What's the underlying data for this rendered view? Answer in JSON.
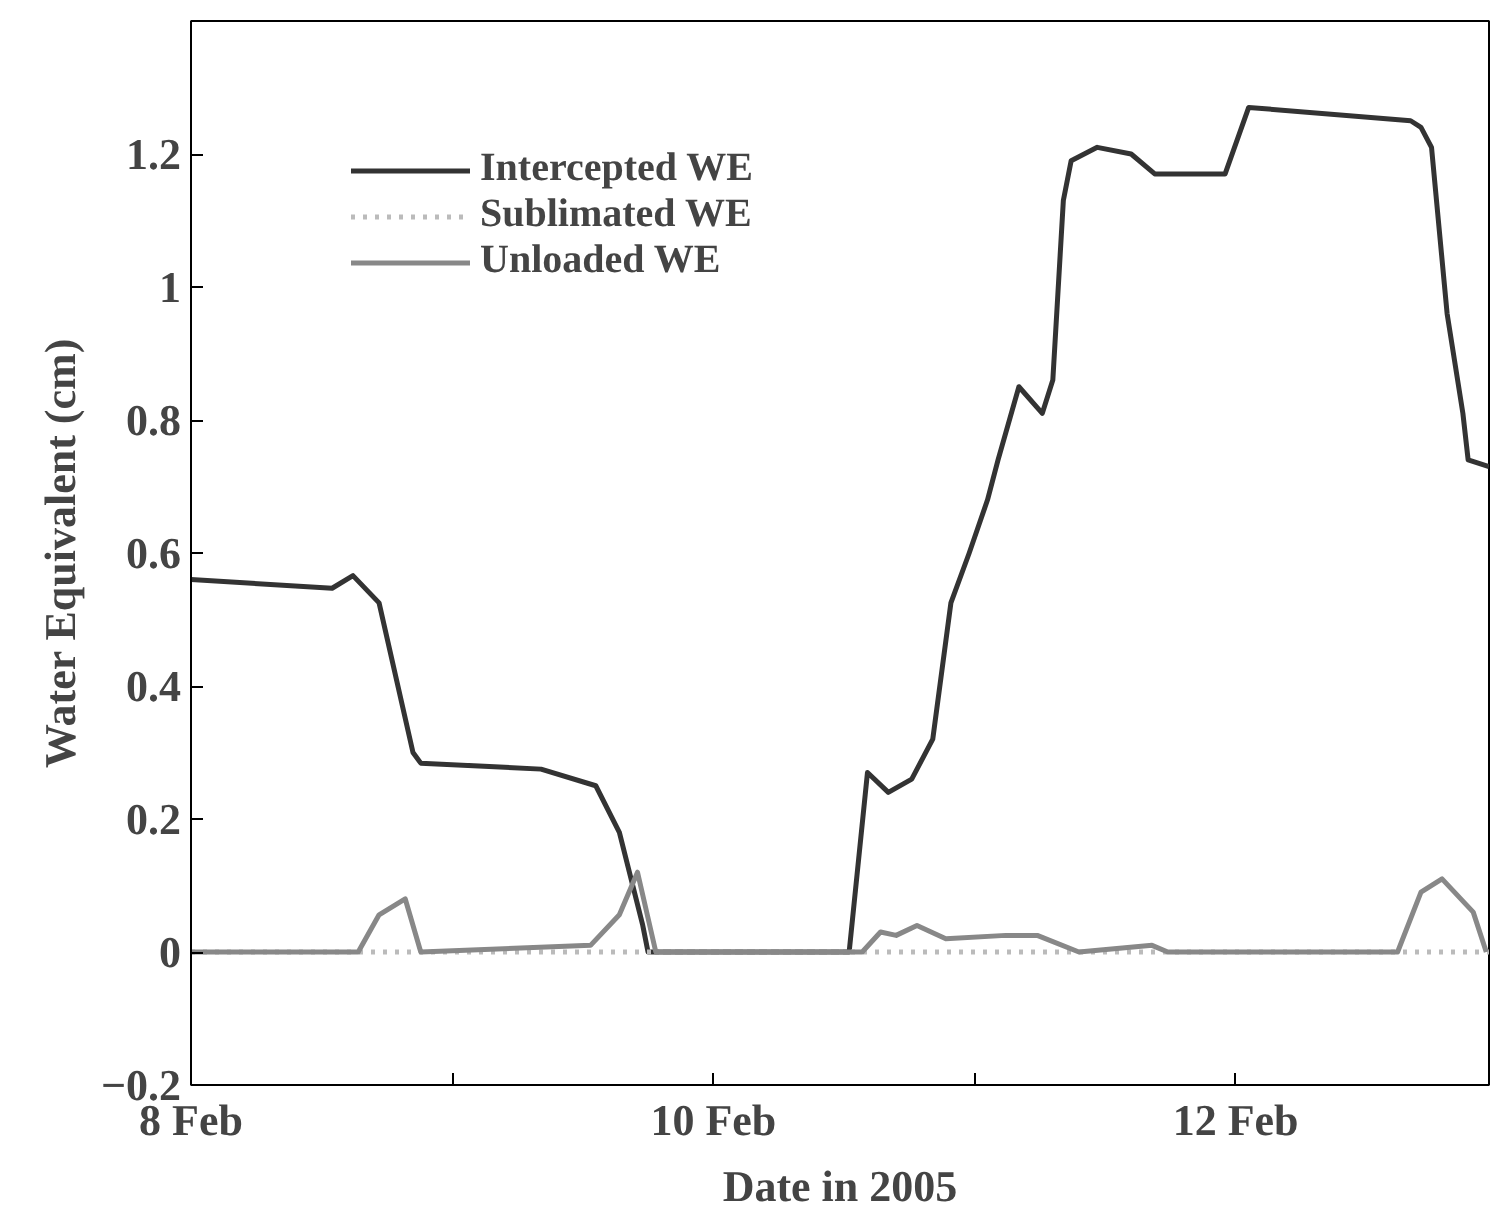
{
  "chart_data": {
    "type": "line",
    "xlabel": "Date in 2005",
    "ylabel": "Water Equivalent (cm)",
    "xlim": [
      "2005-02-08T00:00",
      "2005-02-12T23:17"
    ],
    "ylim": [
      -0.2,
      1.4
    ],
    "xticks": [
      {
        "value": "2005-02-08",
        "label": "8 Feb"
      },
      {
        "value": "2005-02-09",
        "label": null
      },
      {
        "value": "2005-02-10",
        "label": "10 Feb"
      },
      {
        "value": "2005-02-11",
        "label": null
      },
      {
        "value": "2005-02-12",
        "label": "12 Feb"
      }
    ],
    "yticks": [
      {
        "value": -0.2,
        "label": "−0.2"
      },
      0,
      0.2,
      0.4,
      0.6,
      0.8,
      1,
      1.2
    ],
    "grid": false,
    "legend": "top left",
    "marker": "none",
    "series": [
      {
        "name": "Intercepted WE",
        "color": "#333333",
        "line_style": "solid",
        "x": [
          "2005-02-08T00:00",
          "2005-02-08T12:58",
          "2005-02-08T14:53",
          "2005-02-08T17:17",
          "2005-02-08T20:24",
          "2005-02-08T21:07",
          "2005-02-09T08:10",
          "2005-02-09T13:12",
          "2005-02-09T15:22",
          "2005-02-09T17:31",
          "2005-02-09T18:00",
          "2005-02-10T12:29",
          "2005-02-10T14:10",
          "2005-02-10T16:05",
          "2005-02-10T18:14",
          "2005-02-10T20:10",
          "2005-02-10T21:50",
          "2005-02-10T23:31",
          "2005-02-11T01:12",
          "2005-02-11T02:10",
          "2005-02-11T04:05",
          "2005-02-11T06:14",
          "2005-02-11T07:12",
          "2005-02-11T08:10",
          "2005-02-11T08:53",
          "2005-02-11T11:17",
          "2005-02-11T14:24",
          "2005-02-11T16:34",
          "2005-02-11T23:02",
          "2005-02-12T01:12",
          "2005-02-12T16:05",
          "2005-02-12T17:02",
          "2005-02-12T18:00",
          "2005-02-12T19:26",
          "2005-02-12T20:53",
          "2005-02-12T21:22",
          "2005-02-12T23:17"
        ],
        "values": [
          0.56,
          0.547,
          0.566,
          0.525,
          0.3,
          0.284,
          0.275,
          0.25,
          0.18,
          0.04,
          0,
          0,
          0.27,
          0.24,
          0.26,
          0.32,
          0.525,
          0.6,
          0.68,
          0.74,
          0.85,
          0.81,
          0.86,
          1.13,
          1.19,
          1.21,
          1.2,
          1.17,
          1.17,
          1.27,
          1.25,
          1.24,
          1.21,
          0.96,
          0.81,
          0.74,
          0.73
        ]
      },
      {
        "name": "Sublimated WE",
        "color": "#bbbbbb",
        "line_style": "dotted",
        "x": [
          "2005-02-08T00:00",
          "2005-02-12T23:17"
        ],
        "values": [
          0,
          0
        ]
      },
      {
        "name": "Unloaded WE",
        "color": "#888888",
        "line_style": "solid",
        "x": [
          "2005-02-08T00:00",
          "2005-02-08T15:22",
          "2005-02-08T17:17",
          "2005-02-08T19:41",
          "2005-02-08T21:07",
          "2005-02-09T12:43",
          "2005-02-09T15:22",
          "2005-02-09T17:02",
          "2005-02-09T18:43",
          "2005-02-10T13:41",
          "2005-02-10T15:22",
          "2005-02-10T16:48",
          "2005-02-10T18:43",
          "2005-02-10T21:22",
          "2005-02-11T02:53",
          "2005-02-11T05:46",
          "2005-02-11T09:36",
          "2005-02-11T16:19",
          "2005-02-11T17:46",
          "2005-02-12T14:53",
          "2005-02-12T17:02",
          "2005-02-12T18:58",
          "2005-02-12T21:50",
          "2005-02-12T23:02"
        ],
        "values": [
          0,
          0,
          0.056,
          0.08,
          0,
          0.01,
          0.056,
          0.12,
          0,
          0,
          0.03,
          0.025,
          0.04,
          0.02,
          0.025,
          0.025,
          0,
          0.01,
          0,
          0,
          0.09,
          0.11,
          0.06,
          0
        ]
      }
    ]
  }
}
